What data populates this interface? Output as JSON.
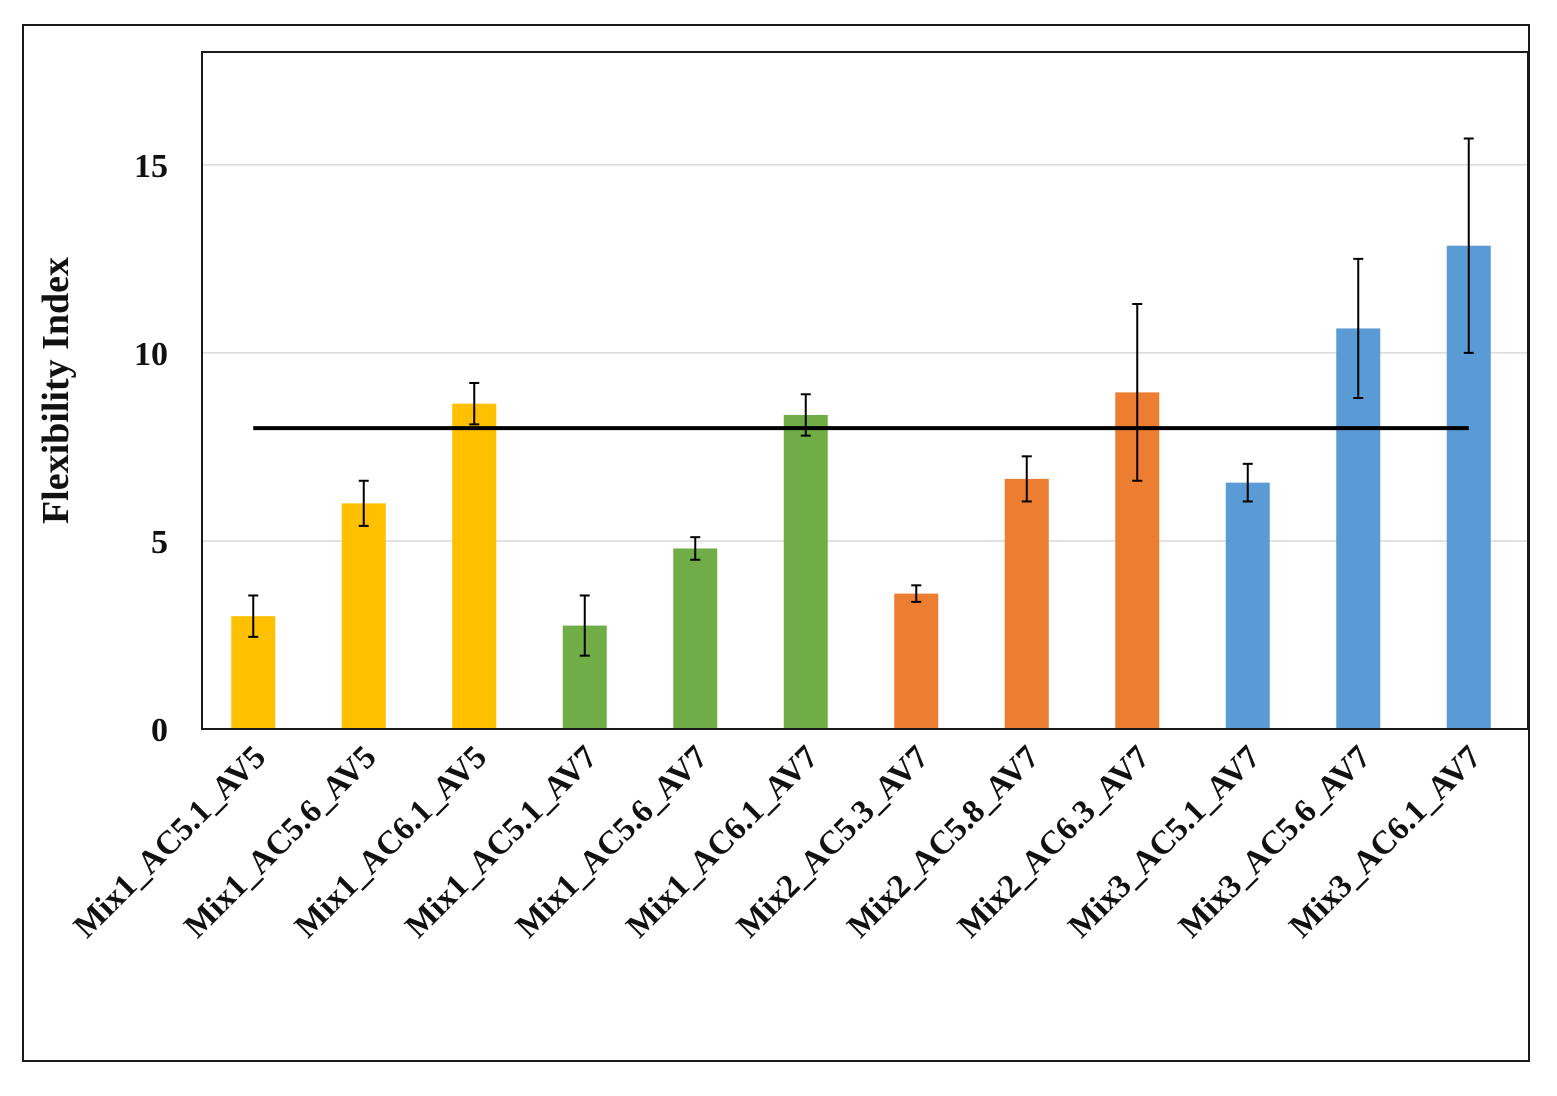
{
  "chart_data": {
    "type": "bar",
    "title": "",
    "xlabel": "",
    "ylabel": "Flexibility Index",
    "ylim": [
      0,
      18
    ],
    "yticks": [
      0,
      5,
      10,
      15
    ],
    "grid": true,
    "categories": [
      "Mix1_AC5.1_AV5",
      "Mix1_AC5.6_AV5",
      "Mix1_AC6.1_AV5",
      "Mix1_AC5.1_AV7",
      "Mix1_AC5.6_AV7",
      "Mix1_AC6.1_AV7",
      "Mix2_AC5.3_AV7",
      "Mix2_AC5.8_AV7",
      "Mix2_AC6.3_AV7",
      "Mix3_AC5.1_AV7",
      "Mix3_AC5.6_AV7",
      "Mix3_AC6.1_AV7"
    ],
    "values": [
      3.0,
      6.0,
      8.65,
      2.75,
      4.8,
      8.35,
      3.6,
      6.65,
      8.95,
      6.55,
      10.65,
      12.85
    ],
    "error": [
      0.55,
      0.6,
      0.55,
      0.8,
      0.3,
      0.55,
      0.22,
      0.6,
      2.35,
      0.5,
      1.85,
      2.85
    ],
    "colors": [
      "#ffc000",
      "#ffc000",
      "#ffc000",
      "#70ad47",
      "#70ad47",
      "#70ad47",
      "#ed7d31",
      "#ed7d31",
      "#ed7d31",
      "#5b9bd5",
      "#5b9bd5",
      "#5b9bd5"
    ],
    "reference_line": {
      "value": 8.0,
      "color": "#000000"
    }
  }
}
